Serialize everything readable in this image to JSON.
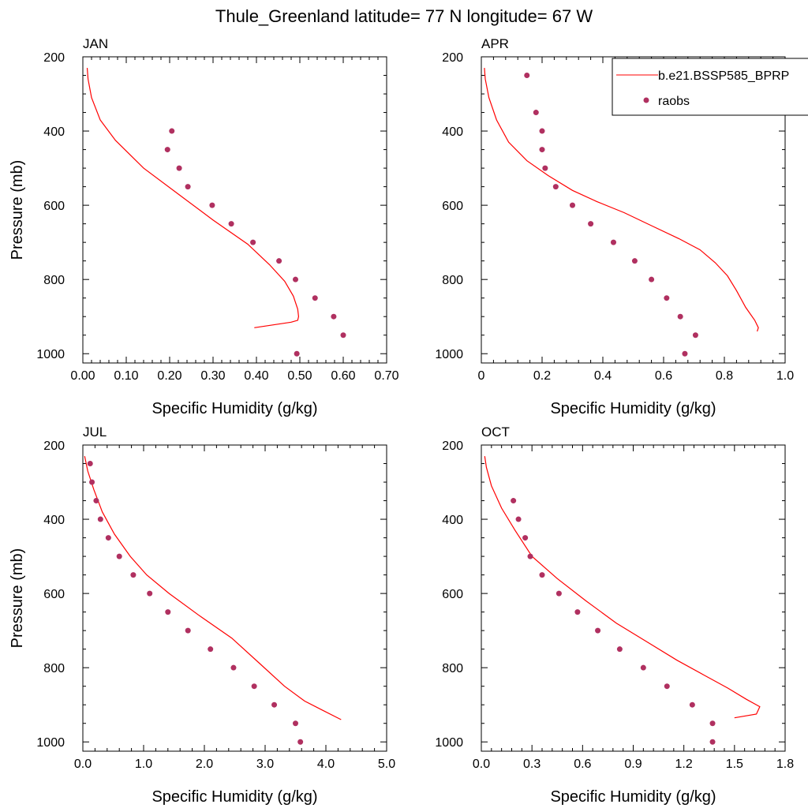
{
  "page_title": "Thule_Greenland  latitude= 77 N longitude= 67 W",
  "legend": {
    "model_label": "b.e21.BSSP585_BPRP",
    "obs_label": "raobs"
  },
  "colors": {
    "model_line": "#ff0000",
    "obs_marker": "#b03060"
  },
  "chart_data": [
    {
      "type": "line",
      "panel_label": "JAN",
      "xlabel": "Specific Humidity (g/kg)",
      "ylabel": "Pressure (mb)",
      "xlim": [
        0,
        0.7
      ],
      "ylim": [
        200,
        1025
      ],
      "y_reversed": true,
      "xticks": [
        0,
        0.1,
        0.2,
        0.3,
        0.4,
        0.5,
        0.6,
        0.7
      ],
      "xtick_labels": [
        "0.00",
        "0.10",
        "0.20",
        "0.30",
        "0.40",
        "0.50",
        "0.60",
        "0.70"
      ],
      "yticks": [
        200,
        400,
        600,
        800,
        1000
      ],
      "ytick_labels": [
        "200",
        "400",
        "600",
        "800",
        "1000"
      ],
      "series": [
        {
          "name": "b.e21.BSSP585_BPRP",
          "style": "line",
          "x": [
            0.01,
            0.012,
            0.02,
            0.04,
            0.075,
            0.14,
            0.22,
            0.3,
            0.38,
            0.43,
            0.465,
            0.485,
            0.495,
            0.497,
            0.495,
            0.48,
            0.395
          ],
          "y": [
            230,
            260,
            310,
            370,
            425,
            500,
            570,
            640,
            705,
            760,
            805,
            845,
            880,
            900,
            910,
            915,
            930
          ]
        },
        {
          "name": "raobs",
          "style": "markers",
          "x": [
            0.205,
            0.195,
            0.222,
            0.242,
            0.298,
            0.342,
            0.392,
            0.452,
            0.49,
            0.535,
            0.578,
            0.6,
            0.493
          ],
          "y": [
            400,
            450,
            500,
            550,
            600,
            650,
            700,
            750,
            800,
            850,
            900,
            950,
            1000
          ]
        }
      ]
    },
    {
      "type": "line",
      "panel_label": "APR",
      "xlabel": "Specific Humidity (g/kg)",
      "ylabel": "",
      "xlim": [
        0,
        1.0
      ],
      "ylim": [
        200,
        1025
      ],
      "y_reversed": true,
      "show_legend": true,
      "xticks": [
        0,
        0.2,
        0.4,
        0.6,
        0.8,
        1.0
      ],
      "xtick_labels": [
        "0",
        "0.2",
        "0.4",
        "0.6",
        "0.8",
        "1.0"
      ],
      "yticks": [
        200,
        400,
        600,
        800,
        1000
      ],
      "ytick_labels": [
        "200",
        "400",
        "600",
        "800",
        "1000"
      ],
      "series": [
        {
          "name": "b.e21.BSSP585_BPRP",
          "style": "line",
          "x": [
            0.01,
            0.013,
            0.025,
            0.05,
            0.09,
            0.15,
            0.22,
            0.3,
            0.38,
            0.47,
            0.56,
            0.65,
            0.72,
            0.77,
            0.81,
            0.84,
            0.87,
            0.9,
            0.912,
            0.908
          ],
          "y": [
            230,
            260,
            310,
            370,
            430,
            480,
            520,
            560,
            590,
            620,
            655,
            690,
            720,
            755,
            790,
            830,
            875,
            910,
            930,
            940
          ]
        },
        {
          "name": "raobs",
          "style": "markers",
          "x": [
            0.15,
            0.18,
            0.2,
            0.2,
            0.21,
            0.245,
            0.3,
            0.36,
            0.435,
            0.505,
            0.56,
            0.61,
            0.655,
            0.705,
            0.67
          ],
          "y": [
            250,
            350,
            400,
            450,
            500,
            550,
            600,
            650,
            700,
            750,
            800,
            850,
            900,
            950,
            1000
          ]
        }
      ]
    },
    {
      "type": "line",
      "panel_label": "JUL",
      "xlabel": "Specific Humidity (g/kg)",
      "ylabel": "Pressure (mb)",
      "xlim": [
        0,
        5.0
      ],
      "ylim": [
        200,
        1025
      ],
      "y_reversed": true,
      "xticks": [
        0,
        1,
        2,
        3,
        4,
        5
      ],
      "xtick_labels": [
        "0.0",
        "1.0",
        "2.0",
        "3.0",
        "4.0",
        "5.0"
      ],
      "yticks": [
        200,
        400,
        600,
        800,
        1000
      ],
      "ytick_labels": [
        "200",
        "400",
        "600",
        "800",
        "1000"
      ],
      "series": [
        {
          "name": "b.e21.BSSP585_BPRP",
          "style": "line",
          "x": [
            0.03,
            0.08,
            0.18,
            0.32,
            0.52,
            0.78,
            1.05,
            1.42,
            1.92,
            2.45,
            2.92,
            3.32,
            3.65,
            3.95,
            4.25
          ],
          "y": [
            230,
            270,
            320,
            380,
            440,
            500,
            550,
            600,
            660,
            720,
            790,
            850,
            890,
            915,
            940
          ]
        },
        {
          "name": "raobs",
          "style": "markers",
          "x": [
            0.12,
            0.15,
            0.22,
            0.29,
            0.42,
            0.6,
            0.83,
            1.1,
            1.4,
            1.73,
            2.1,
            2.48,
            2.82,
            3.15,
            3.5,
            3.58
          ],
          "y": [
            250,
            300,
            350,
            400,
            450,
            500,
            550,
            600,
            650,
            700,
            750,
            800,
            850,
            900,
            950,
            1000
          ]
        }
      ]
    },
    {
      "type": "line",
      "panel_label": "OCT",
      "xlabel": "Specific Humidity (g/kg)",
      "ylabel": "",
      "xlim": [
        0,
        1.8
      ],
      "ylim": [
        200,
        1025
      ],
      "y_reversed": true,
      "xticks": [
        0,
        0.3,
        0.6,
        0.9,
        1.2,
        1.5,
        1.8
      ],
      "xtick_labels": [
        "0.0",
        "0.3",
        "0.6",
        "0.9",
        "1.2",
        "1.5",
        "1.8"
      ],
      "yticks": [
        200,
        400,
        600,
        800,
        1000
      ],
      "ytick_labels": [
        "200",
        "400",
        "600",
        "800",
        "1000"
      ],
      "series": [
        {
          "name": "b.e21.BSSP585_BPRP",
          "style": "line",
          "x": [
            0.02,
            0.03,
            0.06,
            0.12,
            0.2,
            0.3,
            0.45,
            0.62,
            0.8,
            0.98,
            1.16,
            1.32,
            1.46,
            1.57,
            1.65,
            1.63,
            1.5
          ],
          "y": [
            230,
            260,
            310,
            370,
            430,
            500,
            560,
            620,
            680,
            730,
            780,
            820,
            855,
            885,
            905,
            925,
            935
          ]
        },
        {
          "name": "raobs",
          "style": "markers",
          "x": [
            0.19,
            0.22,
            0.26,
            0.29,
            0.36,
            0.46,
            0.57,
            0.69,
            0.82,
            0.96,
            1.1,
            1.25,
            1.37,
            1.37
          ],
          "y": [
            350,
            400,
            450,
            500,
            550,
            600,
            650,
            700,
            750,
            800,
            850,
            900,
            950,
            1000
          ]
        }
      ]
    }
  ]
}
